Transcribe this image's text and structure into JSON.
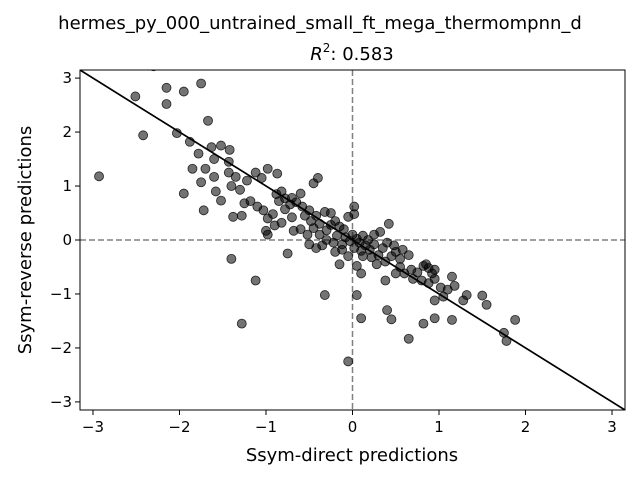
{
  "chart_data": {
    "type": "scatter",
    "title_line1": "hermes_py_000_untrained_small_ft_mega_thermompnn_d",
    "title_r2_label": "R",
    "title_r2_sup": "2",
    "title_r2_value": ": 0.583",
    "xlabel": "Ssym-direct predictions",
    "ylabel": "Ssym-reverse predictions",
    "xlim": [
      -3.15,
      3.15
    ],
    "ylim": [
      -3.15,
      3.15
    ],
    "x_ticks": [
      -3,
      -2,
      -1,
      0,
      1,
      2,
      3
    ],
    "y_ticks": [
      -3,
      -2,
      -1,
      0,
      1,
      2,
      3
    ],
    "x_tick_labels": [
      "−3",
      "−2",
      "−1",
      "0",
      "1",
      "2",
      "3"
    ],
    "y_tick_labels": [
      "−3",
      "−2",
      "−1",
      "0",
      "1",
      "2",
      "3"
    ],
    "reference_line": {
      "type": "y = -x",
      "color": "#000000"
    },
    "zero_lines": {
      "style": "dashed",
      "color": "#808080"
    },
    "marker_color": "#000000",
    "marker_alpha": 0.55,
    "grid": false,
    "legend": "none",
    "points": [
      [
        -2.93,
        1.18
      ],
      [
        -2.3,
        3.22
      ],
      [
        -1.95,
        2.75
      ],
      [
        -1.75,
        2.9
      ],
      [
        -2.51,
        2.66
      ],
      [
        -2.42,
        1.94
      ],
      [
        -2.15,
        2.82
      ],
      [
        -2.15,
        2.52
      ],
      [
        -2.03,
        1.98
      ],
      [
        -1.67,
        2.21
      ],
      [
        -1.88,
        1.82
      ],
      [
        -1.78,
        1.6
      ],
      [
        -1.63,
        1.72
      ],
      [
        -1.52,
        1.75
      ],
      [
        -1.42,
        1.67
      ],
      [
        -1.6,
        1.5
      ],
      [
        -1.43,
        1.45
      ],
      [
        -1.7,
        1.32
      ],
      [
        -1.85,
        1.32
      ],
      [
        -1.75,
        1.07
      ],
      [
        -1.6,
        1.17
      ],
      [
        -1.43,
        1.25
      ],
      [
        -1.35,
        1.17
      ],
      [
        -1.4,
        1.0
      ],
      [
        -1.3,
        0.93
      ],
      [
        -1.22,
        1.1
      ],
      [
        -1.12,
        1.25
      ],
      [
        -1.05,
        1.15
      ],
      [
        -0.98,
        1.32
      ],
      [
        -0.87,
        1.23
      ],
      [
        -1.95,
        0.86
      ],
      [
        -1.58,
        0.9
      ],
      [
        -1.72,
        0.55
      ],
      [
        -1.52,
        0.73
      ],
      [
        -1.38,
        0.43
      ],
      [
        -1.28,
        0.45
      ],
      [
        -1.25,
        0.68
      ],
      [
        -1.18,
        0.72
      ],
      [
        -1.1,
        0.62
      ],
      [
        -1.03,
        0.55
      ],
      [
        -0.98,
        0.4
      ],
      [
        -0.92,
        0.48
      ],
      [
        -1.0,
        0.17
      ],
      [
        -0.98,
        0.1
      ],
      [
        -0.9,
        0.27
      ],
      [
        -0.82,
        0.32
      ],
      [
        -0.78,
        0.57
      ],
      [
        -0.7,
        0.42
      ],
      [
        -0.85,
        0.72
      ],
      [
        -0.78,
        0.77
      ],
      [
        -0.72,
        0.66
      ],
      [
        -0.65,
        0.7
      ],
      [
        -0.58,
        0.62
      ],
      [
        -0.5,
        0.55
      ],
      [
        -0.88,
        0.85
      ],
      [
        -0.82,
        0.9
      ],
      [
        -0.7,
        0.78
      ],
      [
        -0.6,
        0.86
      ],
      [
        -0.45,
        1.05
      ],
      [
        -0.4,
        1.15
      ],
      [
        -0.55,
        0.45
      ],
      [
        -0.48,
        0.35
      ],
      [
        -0.42,
        0.45
      ],
      [
        -0.38,
        0.3
      ],
      [
        -0.32,
        0.52
      ],
      [
        -0.25,
        0.5
      ],
      [
        -0.68,
        0.17
      ],
      [
        -0.6,
        0.2
      ],
      [
        -0.52,
        0.1
      ],
      [
        -0.45,
        0.22
      ],
      [
        -0.38,
        0.1
      ],
      [
        -0.3,
        0.18
      ],
      [
        -0.25,
        0.28
      ],
      [
        -0.2,
        0.35
      ],
      [
        -0.15,
        0.25
      ],
      [
        -0.1,
        0.2
      ],
      [
        -0.05,
        0.43
      ],
      [
        0.02,
        0.48
      ],
      [
        -0.3,
        0.0
      ],
      [
        -0.22,
        -0.05
      ],
      [
        -0.18,
        0.08
      ],
      [
        -0.12,
        -0.08
      ],
      [
        -0.08,
        0.05
      ],
      [
        -0.03,
        -0.02
      ],
      [
        0.0,
        0.1
      ],
      [
        0.05,
        0.02
      ],
      [
        0.08,
        -0.05
      ],
      [
        0.12,
        0.08
      ],
      [
        0.15,
        -0.1
      ],
      [
        0.18,
        0.0
      ],
      [
        -0.2,
        -0.22
      ],
      [
        -0.12,
        -0.18
      ],
      [
        0.02,
        -0.15
      ],
      [
        0.1,
        -0.2
      ],
      [
        0.2,
        -0.18
      ],
      [
        0.25,
        -0.08
      ],
      [
        0.05,
        -0.48
      ],
      [
        0.12,
        -0.3
      ],
      [
        0.22,
        -0.32
      ],
      [
        0.3,
        -0.28
      ],
      [
        0.35,
        -0.15
      ],
      [
        0.4,
        -0.05
      ],
      [
        0.28,
        -0.45
      ],
      [
        0.38,
        -0.4
      ],
      [
        0.45,
        -0.3
      ],
      [
        0.5,
        -0.22
      ],
      [
        0.55,
        -0.35
      ],
      [
        0.42,
        0.3
      ],
      [
        0.25,
        0.1
      ],
      [
        0.32,
        0.15
      ],
      [
        0.48,
        -0.1
      ],
      [
        0.58,
        -0.18
      ],
      [
        0.65,
        -0.28
      ],
      [
        0.55,
        -0.5
      ],
      [
        0.6,
        -0.62
      ],
      [
        0.68,
        -0.55
      ],
      [
        0.75,
        -0.6
      ],
      [
        0.82,
        -0.48
      ],
      [
        0.88,
        -0.52
      ],
      [
        0.92,
        -0.62
      ],
      [
        0.7,
        -0.72
      ],
      [
        0.8,
        -0.75
      ],
      [
        0.88,
        -0.8
      ],
      [
        0.95,
        -0.72
      ],
      [
        1.02,
        -0.88
      ],
      [
        1.1,
        -0.92
      ],
      [
        0.85,
        -0.45
      ],
      [
        0.95,
        -0.55
      ],
      [
        1.15,
        -0.68
      ],
      [
        1.18,
        -0.85
      ],
      [
        1.32,
        -1.02
      ],
      [
        1.28,
        -1.12
      ],
      [
        1.05,
        -1.05
      ],
      [
        0.95,
        -1.12
      ],
      [
        1.5,
        -1.03
      ],
      [
        1.55,
        -1.2
      ],
      [
        1.75,
        -1.72
      ],
      [
        1.78,
        -1.87
      ],
      [
        1.88,
        -1.48
      ],
      [
        1.15,
        -1.48
      ],
      [
        0.95,
        -1.45
      ],
      [
        0.82,
        -1.55
      ],
      [
        0.65,
        -1.83
      ],
      [
        0.45,
        -1.47
      ],
      [
        0.4,
        -1.3
      ],
      [
        0.1,
        -1.45
      ],
      [
        0.05,
        -1.02
      ],
      [
        -0.32,
        -1.02
      ],
      [
        -0.05,
        -2.25
      ],
      [
        -1.28,
        -1.55
      ],
      [
        -1.12,
        -0.75
      ],
      [
        -1.4,
        -0.35
      ],
      [
        -0.75,
        -0.25
      ],
      [
        -0.15,
        -0.45
      ],
      [
        -0.05,
        -0.3
      ],
      [
        0.1,
        -0.62
      ],
      [
        0.38,
        -0.75
      ],
      [
        0.5,
        -0.62
      ],
      [
        -0.5,
        -0.08
      ],
      [
        -0.42,
        -0.15
      ],
      [
        -0.35,
        -0.1
      ],
      [
        0.02,
        0.62
      ]
    ]
  }
}
